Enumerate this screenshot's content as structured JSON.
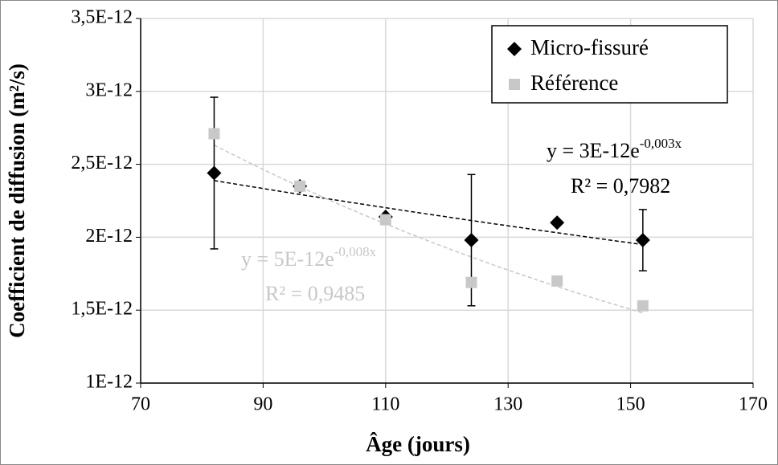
{
  "chart_data": {
    "type": "scatter",
    "xlabel": "Âge (jours)",
    "ylabel": "Coefficient de diffusion (m²/s)",
    "x": [
      82,
      96,
      110,
      124,
      138,
      152
    ],
    "xlim": [
      70,
      170
    ],
    "xticks": [
      70,
      90,
      110,
      130,
      150,
      170
    ],
    "ylim": [
      1e-12,
      3.5e-12
    ],
    "yticks": [
      {
        "value": 1e-12,
        "label": "1E-12"
      },
      {
        "value": 1.5e-12,
        "label": "1,5E-12"
      },
      {
        "value": 2e-12,
        "label": "2E-12"
      },
      {
        "value": 2.5e-12,
        "label": "2,5E-12"
      },
      {
        "value": 3e-12,
        "label": "3E-12"
      },
      {
        "value": 3.5e-12,
        "label": "3,5E-12"
      }
    ],
    "grid": true,
    "legend": "top-right",
    "series": [
      {
        "name": "Micro-fissuré",
        "color": "#000000",
        "marker": "diamond",
        "values": [
          2.44e-12,
          2.35e-12,
          2.14e-12,
          1.98e-12,
          2.1e-12,
          1.98e-12
        ],
        "errors": [
          5.2e-13,
          null,
          null,
          4.5e-13,
          null,
          2.1e-13
        ],
        "trendline": {
          "a": 3.03e-12,
          "b": -0.0029,
          "equation": "y = 3E-12e",
          "exponent": "-0,003x",
          "r2": "R² = 0,7982"
        }
      },
      {
        "name": "Référence",
        "color": "#c8c8c8",
        "marker": "square",
        "values": [
          2.71e-12,
          2.35e-12,
          2.12e-12,
          1.69e-12,
          1.7e-12,
          1.53e-12
        ],
        "trendline": {
          "a": 5.16e-12,
          "b": -0.00821,
          "equation": "y = 5E-12e",
          "exponent": "-0,008x",
          "r2": "R² = 0,9485"
        }
      }
    ]
  }
}
